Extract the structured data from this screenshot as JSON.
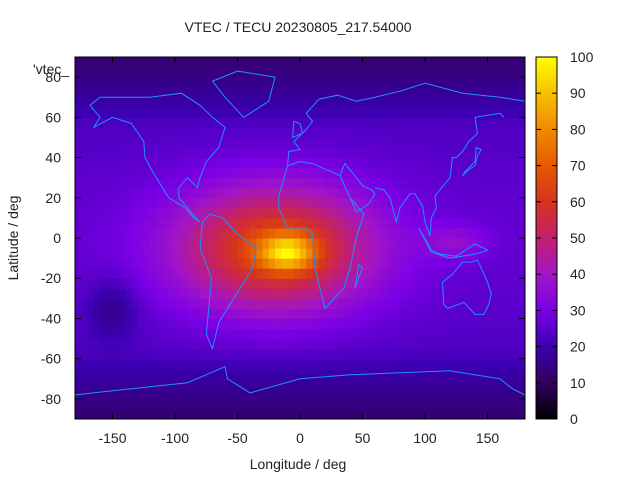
{
  "chart_data": {
    "type": "heatmap",
    "title": "VTEC / TECU 20230805_217.54000",
    "xlabel": "Longitude / deg",
    "ylabel": "Latitude / deg",
    "key_label": "'vtec_",
    "xlim": [
      -180,
      180
    ],
    "ylim": [
      -90,
      90
    ],
    "x_ticks": [
      -150,
      -100,
      -50,
      0,
      50,
      100,
      150
    ],
    "y_ticks": [
      -80,
      -60,
      -40,
      -20,
      0,
      20,
      40,
      60,
      80
    ],
    "colorbar": {
      "range": [
        0,
        100
      ],
      "ticks": [
        0,
        10,
        20,
        30,
        40,
        50,
        60,
        70,
        80,
        90,
        100
      ],
      "palette": [
        "#000000",
        "#33005e",
        "#3a00b0",
        "#7a00e6",
        "#a215c6",
        "#c2206e",
        "#d6331e",
        "#e55a00",
        "#f08a00",
        "#f8c000",
        "#ffff00"
      ]
    },
    "coastline_color": "#1e90ff",
    "peak": {
      "lon": -10,
      "lat": -7,
      "value": 95
    },
    "anomaly_crest": {
      "lon_range": [
        -110,
        70
      ],
      "lat_range": [
        -40,
        30
      ],
      "value_range": [
        50,
        70
      ]
    },
    "background_level": 20,
    "polar_level": 10
  }
}
